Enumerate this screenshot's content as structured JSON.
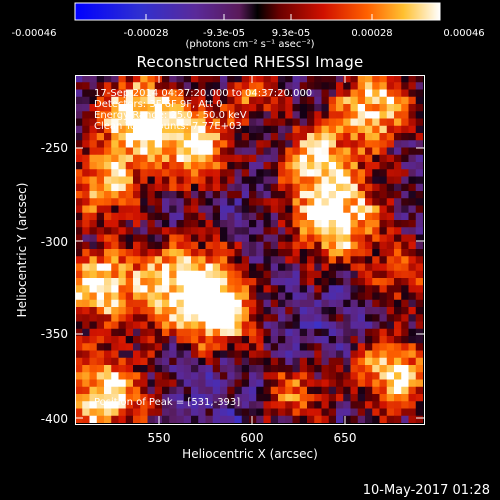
{
  "colorbar": {
    "ticks": [
      "-0.00046",
      "-0.00028",
      "-9.3e-05",
      "9.3e-05",
      "0.00028",
      "0.00046"
    ],
    "units": "(photons cm⁻² s⁻¹ asec⁻²)",
    "min": -0.00046,
    "max": 0.00046
  },
  "title": "Reconstructed RHESSI Image",
  "annotations": {
    "time": "17-Sep-2014 04:27:20.000 to 04:37:20.000",
    "detectors": "Detectors: 3F 6F 9F, Att 0",
    "energy": "Energy Range: 25.0 - 50.0 keV",
    "clean": "Clean     Total counts: 7.77E+03",
    "peak": "Position of Peak = [531,-393]"
  },
  "axes": {
    "xlabel": "Heliocentric X (arcsec)",
    "ylabel": "Heliocentric Y (arcsec)",
    "xticks": [
      "550",
      "600",
      "650"
    ],
    "yticks": [
      "-250",
      "-300",
      "-350",
      "-400"
    ]
  },
  "footer": "10-May-2017 01:28",
  "chart_data": {
    "type": "heatmap",
    "title": "Reconstructed RHESSI Image",
    "xlabel": "Heliocentric X (arcsec)",
    "ylabel": "Heliocentric Y (arcsec)",
    "xlim": [
      505,
      693
    ],
    "ylim": [
      -402,
      -214
    ],
    "colormap": "rainbow-like (blue-purple-red-orange-yellow-white)",
    "value_range": [
      -0.00046,
      0.00046
    ],
    "peak_position": [
      531,
      -393
    ],
    "grid": false
  }
}
